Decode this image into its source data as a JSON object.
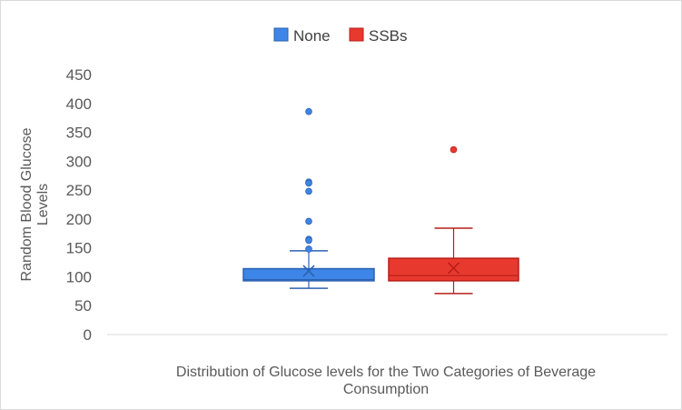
{
  "chart_data": {
    "type": "box",
    "title": "",
    "xlabel": "Distribution of Glucose levels for the Two Categories of Beverage Consumption",
    "ylabel": "Random Blood Glucose Levels",
    "ylim": [
      0,
      450
    ],
    "yticks": [
      0,
      50,
      100,
      150,
      200,
      250,
      300,
      350,
      400,
      450
    ],
    "grid": false,
    "legend_position": "top",
    "series": [
      {
        "name": "None",
        "color": "#3d85e6",
        "stroke": "#2b62b3",
        "whisker_low": 80,
        "q1": 93,
        "median": 95,
        "q3": 114,
        "whisker_high": 145,
        "mean": 110,
        "outliers": [
          386,
          264,
          262,
          248,
          196,
          165,
          163,
          148
        ]
      },
      {
        "name": "SSBs",
        "color": "#e8392f",
        "stroke": "#b81f18",
        "whisker_low": 71,
        "q1": 93,
        "median": 102,
        "q3": 132,
        "whisker_high": 184,
        "mean": 115,
        "outliers": [
          320
        ]
      }
    ]
  }
}
